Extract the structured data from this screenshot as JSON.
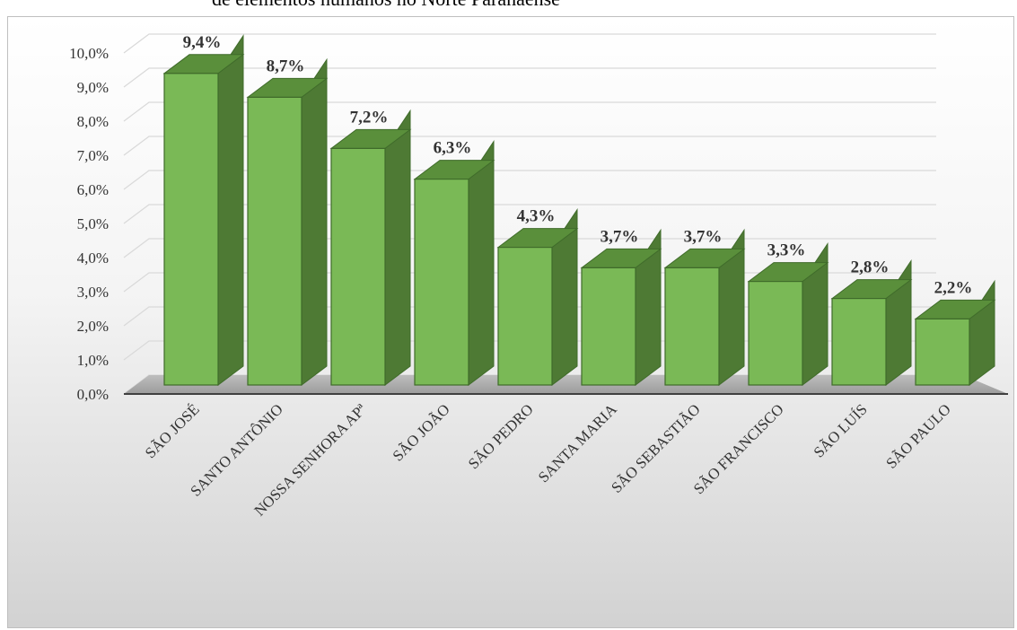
{
  "caption": "de elementos humanos no Norte Paranaense",
  "chart_data": {
    "type": "bar",
    "style": "3d-column",
    "categories": [
      "SÃO JOSÉ",
      "SANTO ANTÔNIO",
      "NOSSA SENHORA APª",
      "SÃO JOÃO",
      "SÃO PEDRO",
      "SANTA MARIA",
      "SÃO SEBASTIÃO",
      "SÃO FRANCISCO",
      "SÃO LUÍS",
      "SÃO PAULO"
    ],
    "values": [
      9.4,
      8.7,
      7.2,
      6.3,
      4.3,
      3.7,
      3.7,
      3.3,
      2.8,
      2.2
    ],
    "data_labels": [
      "9,4%",
      "8,7%",
      "7,2%",
      "6,3%",
      "4,3%",
      "3,7%",
      "3,7%",
      "3,3%",
      "2,8%",
      "2,2%"
    ],
    "y_ticks": [
      "0,0%",
      "1,0%",
      "2,0%",
      "3,0%",
      "4,0%",
      "5,0%",
      "6,0%",
      "7,0%",
      "8,0%",
      "9,0%",
      "10,0%"
    ],
    "ylim": [
      0,
      10
    ],
    "grid": true,
    "legend": "none",
    "colors": {
      "bar_front": "#7ab956",
      "bar_side": "#4e7a34",
      "bar_top": "#5a8f3b",
      "bar_edge": "#3f6b2a",
      "floor": "#a8a8a8",
      "axis": "#404040",
      "grid": "#d9d9d9"
    }
  }
}
